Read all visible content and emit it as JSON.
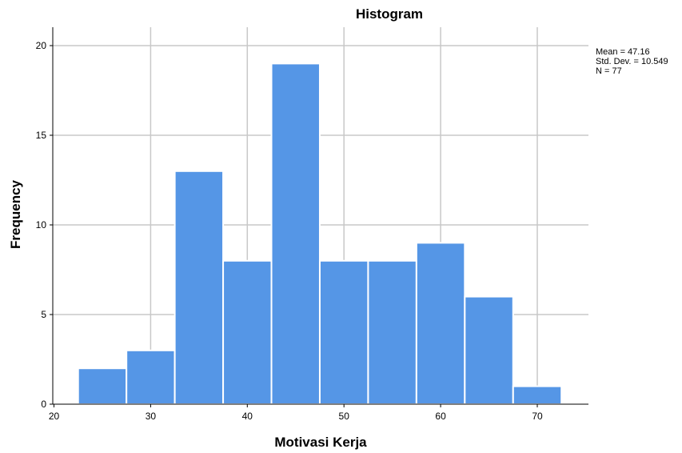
{
  "chart_data": {
    "type": "bar",
    "subtype": "histogram",
    "title": "Histogram",
    "xlabel": "Motivasi Kerja",
    "ylabel": "Frequency",
    "bin_width": 5,
    "bins": [
      {
        "start": 22.5,
        "end": 27.5,
        "count": 2
      },
      {
        "start": 27.5,
        "end": 32.5,
        "count": 3
      },
      {
        "start": 32.5,
        "end": 37.5,
        "count": 13
      },
      {
        "start": 37.5,
        "end": 42.5,
        "count": 8
      },
      {
        "start": 42.5,
        "end": 47.5,
        "count": 19
      },
      {
        "start": 47.5,
        "end": 52.5,
        "count": 8
      },
      {
        "start": 52.5,
        "end": 57.5,
        "count": 8
      },
      {
        "start": 57.5,
        "end": 62.5,
        "count": 9
      },
      {
        "start": 62.5,
        "end": 67.5,
        "count": 6
      },
      {
        "start": 67.5,
        "end": 72.5,
        "count": 1
      }
    ],
    "xlim": [
      20,
      75
    ],
    "ylim": [
      0,
      21
    ],
    "xticks": [
      20,
      30,
      40,
      50,
      60,
      70
    ],
    "yticks": [
      0,
      5,
      10,
      15,
      20
    ],
    "grid": true,
    "stats_label": [
      "Mean = 47.16",
      "Std. Dev. = 10.549",
      "N = 77"
    ],
    "bar_color": "#5596e6",
    "bar_edge_color": "#ffffff",
    "grid_color": "#c8c8c8"
  }
}
